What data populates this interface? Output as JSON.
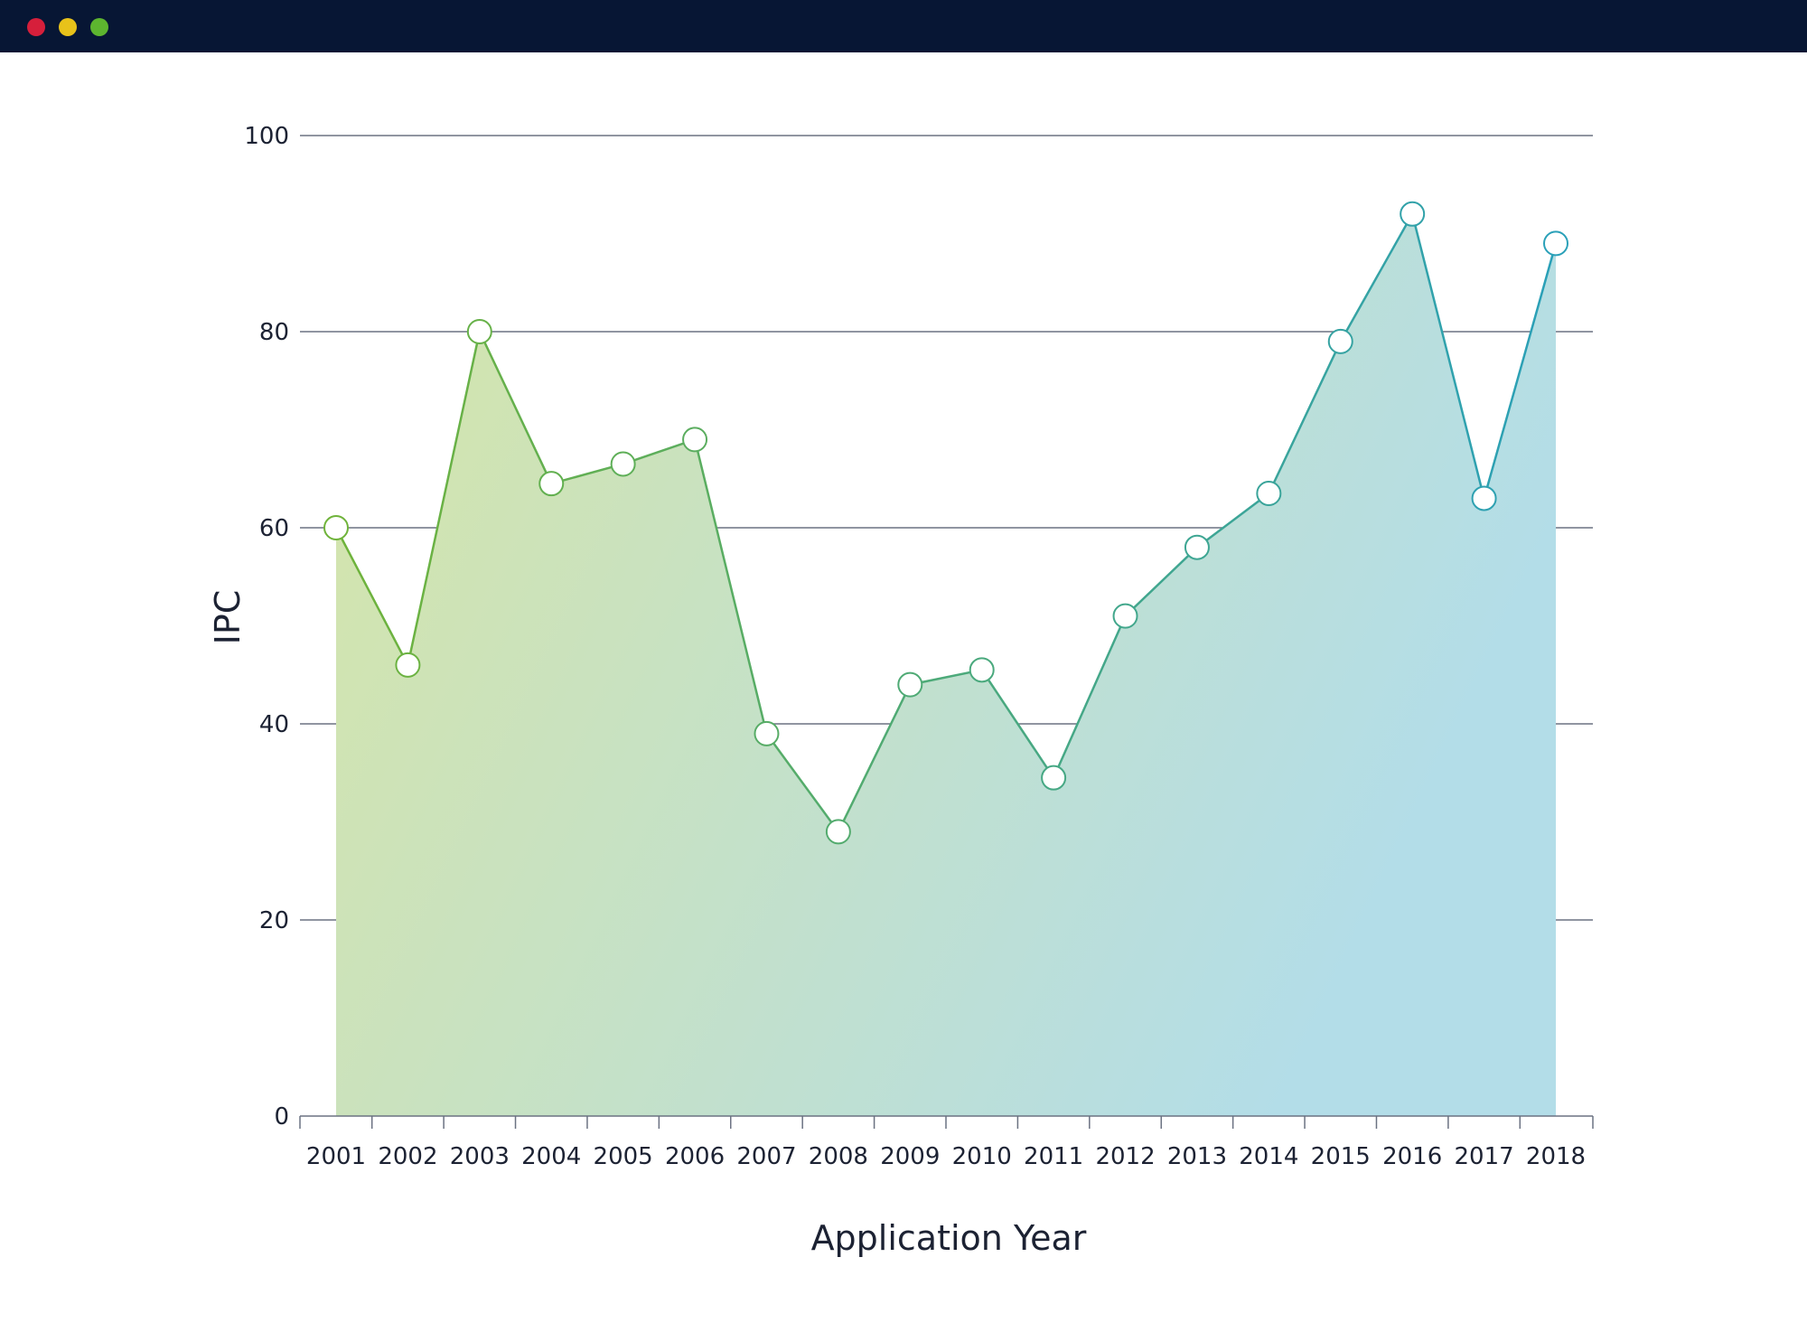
{
  "window": {
    "controls": [
      {
        "name": "close",
        "color": "#d61f3b"
      },
      {
        "name": "minimize",
        "color": "#e8c21a"
      },
      {
        "name": "maximize",
        "color": "#5db52f"
      }
    ]
  },
  "chart_data": {
    "type": "area",
    "xlabel": "Application Year",
    "ylabel": "IPC",
    "ylim": [
      0,
      100
    ],
    "yticks": [
      0,
      20,
      40,
      60,
      80,
      100
    ],
    "grid": "horizontal",
    "categories": [
      "2001",
      "2002",
      "2003",
      "2004",
      "2005",
      "2006",
      "2007",
      "2008",
      "2009",
      "2010",
      "2011",
      "2012",
      "2013",
      "2014",
      "2015",
      "2016",
      "2017",
      "2018"
    ],
    "series": [
      {
        "values": [
          60,
          46,
          80,
          64.5,
          66.5,
          69,
          39,
          29,
          44,
          45.5,
          34.5,
          51,
          58,
          63.5,
          79,
          92,
          63,
          89
        ]
      }
    ],
    "colors": {
      "gradient_start": "#d6e5a8",
      "gradient_end": "#b3dde8",
      "line_start": "#6fb33a",
      "line_end": "#2aa0b8",
      "grid": "#6b7282",
      "axis": "#6b7282",
      "marker_fill": "#ffffff"
    }
  }
}
